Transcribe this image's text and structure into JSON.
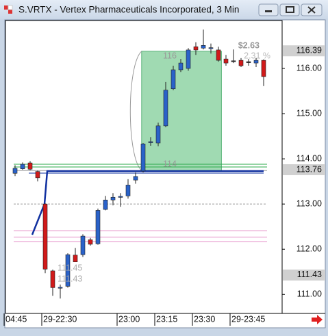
{
  "window_title": "S.VRTX - Vertex Pharmaceuticals Incorporated, 3 Min",
  "chart_data": {
    "type": "candlestick",
    "up_color": "#2a62c9",
    "down_color": "#d11a1a",
    "flat_color": "#333333",
    "ylim": [
      110.58,
      117.06
    ],
    "yticks": [
      {
        "value": 116,
        "label": "116.00"
      },
      {
        "value": 115,
        "label": "115.00"
      },
      {
        "value": 114,
        "label": "114.00"
      },
      {
        "value": 113,
        "label": "113.00"
      },
      {
        "value": 112,
        "label": "112.00"
      },
      {
        "value": 111,
        "label": "111.00"
      }
    ],
    "price_flags": [
      {
        "value": 116.39,
        "label": "116.39"
      },
      {
        "value": 113.76,
        "label": "113.76"
      },
      {
        "value": 111.43,
        "label": "111.43"
      }
    ],
    "xticks": [
      {
        "value": -1,
        "label": "04:45"
      },
      {
        "value": 4,
        "label": "29-22:30"
      },
      {
        "value": 14,
        "label": "23:00"
      },
      {
        "value": 19,
        "label": "23:15"
      },
      {
        "value": 24,
        "label": "23:30"
      },
      {
        "value": 29,
        "label": "29-23:45"
      }
    ],
    "open": [
      113.68,
      113.78,
      113.91,
      113.72,
      113.0,
      111.52,
      111.15,
      111.18,
      111.87,
      111.88,
      112.21,
      112.12,
      112.88,
      113.09,
      113.15,
      113.18,
      113.53,
      113.73,
      114.36,
      114.35,
      114.73,
      115.55,
      115.97,
      116.0,
      116.48,
      116.45,
      116.45,
      116.41,
      116.21,
      116.17,
      116.18,
      116.15,
      116.12,
      116.18
    ],
    "high": [
      113.86,
      113.92,
      113.95,
      113.74,
      113.02,
      111.55,
      111.22,
      111.91,
      112.03,
      112.33,
      112.25,
      112.9,
      113.18,
      113.24,
      113.24,
      113.55,
      113.7,
      114.35,
      114.48,
      114.8,
      115.7,
      116.06,
      116.21,
      116.45,
      116.58,
      116.86,
      116.55,
      116.48,
      116.3,
      116.42,
      116.23,
      116.21,
      116.23,
      116.2
    ],
    "low": [
      113.62,
      113.76,
      113.75,
      113.5,
      111.47,
      110.97,
      110.91,
      111.15,
      111.72,
      111.83,
      112.08,
      112.1,
      112.86,
      112.97,
      112.94,
      113.12,
      113.45,
      113.7,
      114.29,
      114.28,
      114.7,
      115.52,
      115.92,
      115.95,
      116.3,
      116.42,
      116.33,
      116.15,
      116.06,
      116.12,
      116.03,
      116.06,
      116.03,
      115.61
    ],
    "close": [
      113.79,
      113.88,
      113.77,
      113.58,
      111.56,
      111.15,
      111.16,
      111.88,
      111.72,
      112.29,
      112.11,
      112.86,
      113.09,
      113.15,
      113.17,
      113.42,
      113.61,
      114.33,
      114.38,
      114.73,
      115.52,
      115.97,
      116.12,
      116.41,
      116.41,
      116.51,
      116.46,
      116.18,
      116.12,
      116.17,
      116.06,
      116.15,
      116.18,
      115.82
    ],
    "levels": [
      {
        "value": 113.88,
        "color": "#2aa84a"
      },
      {
        "value": 113.82,
        "color": "#2aa84a"
      },
      {
        "value": 113.74,
        "color": "#9a9a9a"
      },
      {
        "value": 113.0,
        "color": "#9a9a9a"
      },
      {
        "value": 112.41,
        "color": "#e58fc8"
      },
      {
        "value": 112.27,
        "color": "#e58fc8"
      },
      {
        "value": 112.17,
        "color": "#e58fc8"
      }
    ],
    "trend_level": 113.73,
    "range_box": {
      "from": 16.8,
      "to": 27.4,
      "low": 113.74,
      "high": 116.38
    },
    "annotations": [
      "$2.63",
      "2.31 %",
      "116",
      "114",
      "111.45",
      "111.43"
    ]
  }
}
